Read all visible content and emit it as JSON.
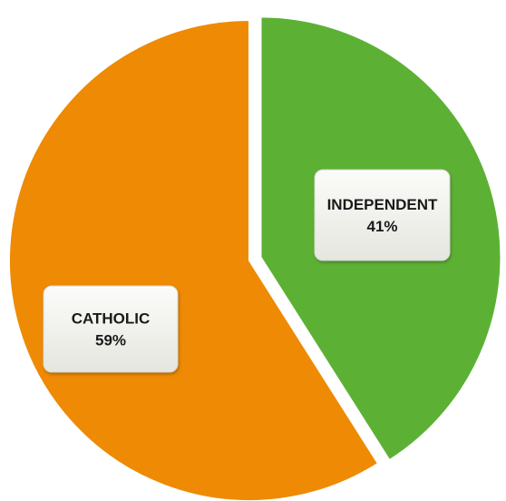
{
  "chart_data": {
    "type": "pie",
    "categories": [
      "INDEPENDENT",
      "CATHOLIC"
    ],
    "values": [
      41,
      59
    ],
    "value_labels": [
      "41%",
      "59%"
    ],
    "colors": [
      "#5cb135",
      "#ee8a04"
    ],
    "exploded": "INDEPENDENT",
    "legend": "none",
    "title": ""
  }
}
